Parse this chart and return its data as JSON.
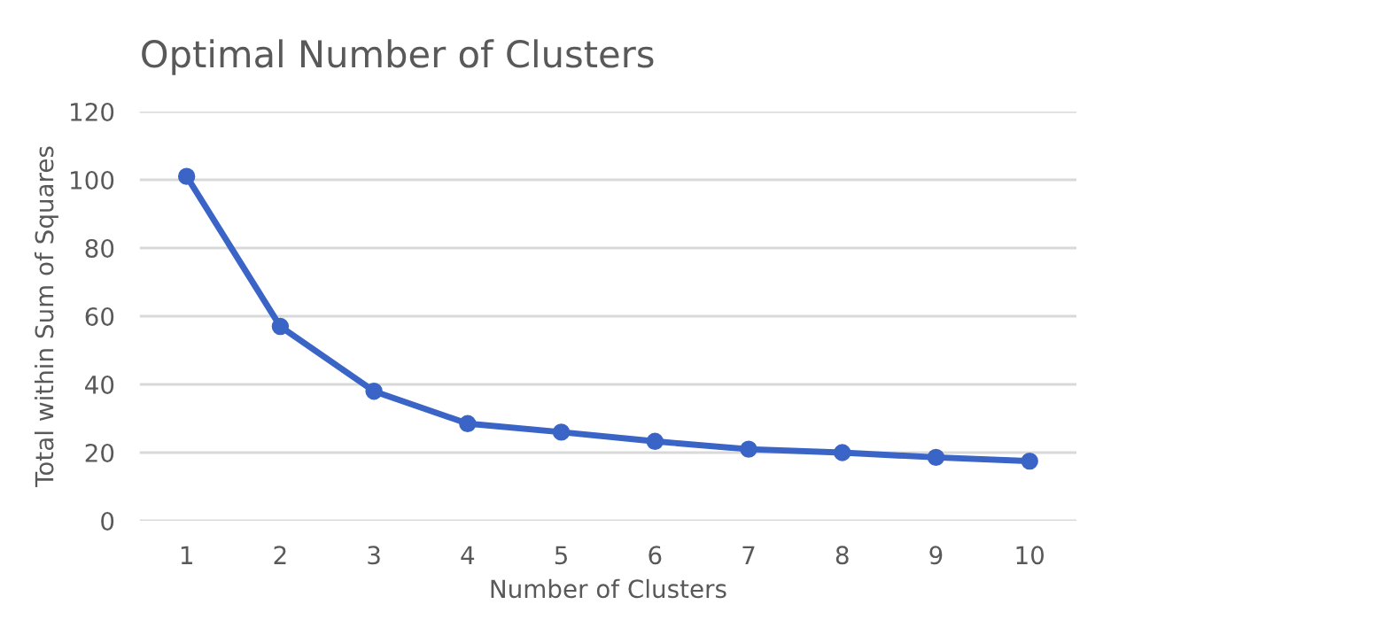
{
  "chart_data": {
    "type": "line",
    "title": "Optimal Number of Clusters",
    "xlabel": "Number of Clusters",
    "ylabel": "Total within Sum of Squares",
    "categories": [
      "1",
      "2",
      "3",
      "4",
      "5",
      "6",
      "7",
      "8",
      "9",
      "10"
    ],
    "series": [
      {
        "color": "#3a64c6",
        "values": [
          101,
          57,
          38,
          28.5,
          26,
          23.3,
          21,
          20,
          18.6,
          17.5
        ]
      }
    ],
    "ylim": [
      0,
      120
    ],
    "yticks": [
      0,
      20,
      40,
      60,
      80,
      100,
      120
    ],
    "grid": "y",
    "marker": "circle",
    "line_style": "solid",
    "legend": false
  }
}
